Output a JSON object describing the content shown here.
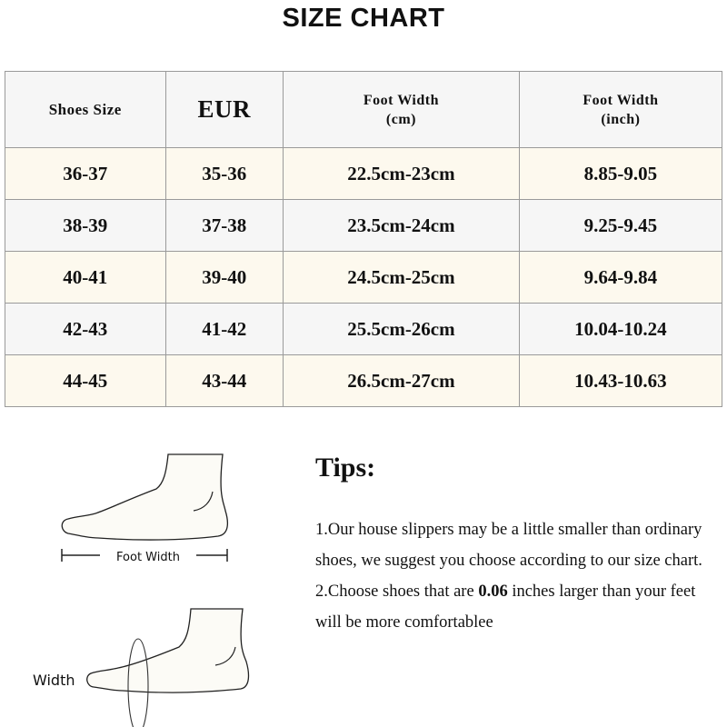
{
  "title": "SIZE CHART",
  "table": {
    "headers": [
      "Shoes Size",
      "EUR",
      "Foot Width",
      "(cm)",
      "Foot Width",
      "(inch)"
    ],
    "rows": [
      [
        "36-37",
        "35-36",
        "22.5cm-23cm",
        "8.85-9.05"
      ],
      [
        "38-39",
        "37-38",
        "23.5cm-24cm",
        "9.25-9.45"
      ],
      [
        "40-41",
        "39-40",
        "24.5cm-25cm",
        "9.64-9.84"
      ],
      [
        "42-43",
        "41-42",
        "25.5cm-26cm",
        "10.04-10.24"
      ],
      [
        "44-45",
        "43-44",
        "26.5cm-27cm",
        "10.43-10.63"
      ]
    ]
  },
  "illustration": {
    "label_top": "Foot Width",
    "label_bottom": "Width"
  },
  "tips": {
    "title": "Tips:",
    "line1": "1.Our house slippers may be a little smaller than ordinary shoes, we suggest you choose according to our size chart.",
    "line2_pre": "2.Choose shoes that are ",
    "line2_bold": "0.06",
    "line2_post": " inches larger than your feet will be more comfortablee"
  },
  "colors": {
    "cream_row": "#fdf9ee",
    "gray_row": "#f6f6f6",
    "border": "#9a9a9a"
  }
}
